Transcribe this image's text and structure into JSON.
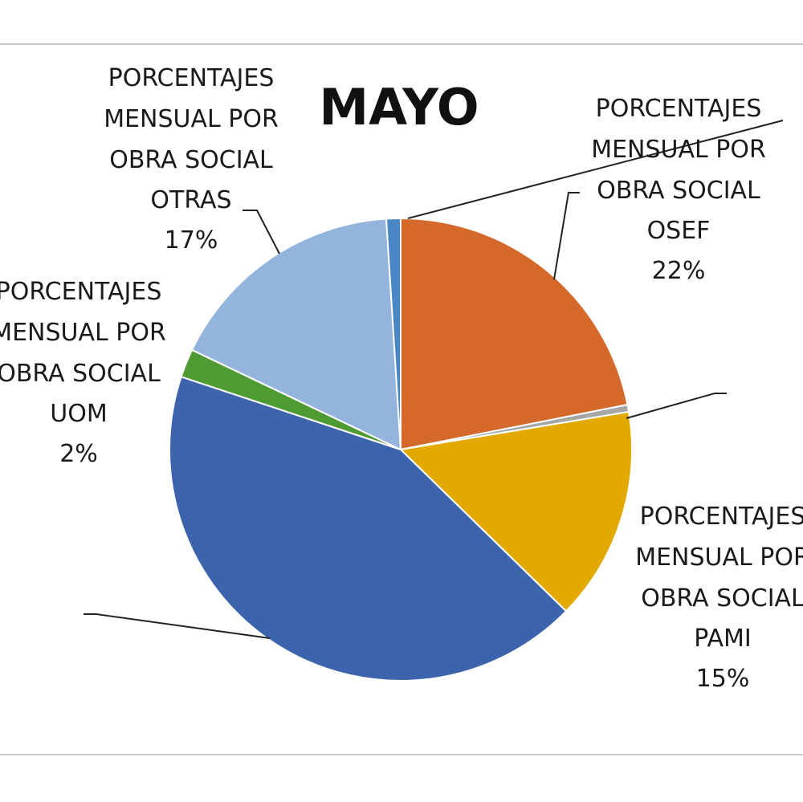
{
  "chart_data": {
    "type": "pie",
    "title": "MAYO",
    "label_prefix": [
      "PORCENTAJES",
      "MENSUAL POR",
      "OBRA SOCIAL"
    ],
    "series": [
      {
        "name": "OSEF",
        "value": 22,
        "label": "22%",
        "color": "#d4692b"
      },
      {
        "name": "",
        "value": 0.5,
        "label": "",
        "color": "#a6a6a6"
      },
      {
        "name": "PAMI",
        "value": 15,
        "label": "15%",
        "color": "#e2a900"
      },
      {
        "name": "",
        "value": 43,
        "label": "",
        "color": "#3c64ad"
      },
      {
        "name": "UOM",
        "value": 2,
        "label": "2%",
        "color": "#4e9b33"
      },
      {
        "name": "OTRAS",
        "value": 17,
        "label": "17%",
        "color": "#92b4dd"
      },
      {
        "name": "",
        "value": 1,
        "label": "",
        "color": "#4a86c5"
      }
    ]
  }
}
